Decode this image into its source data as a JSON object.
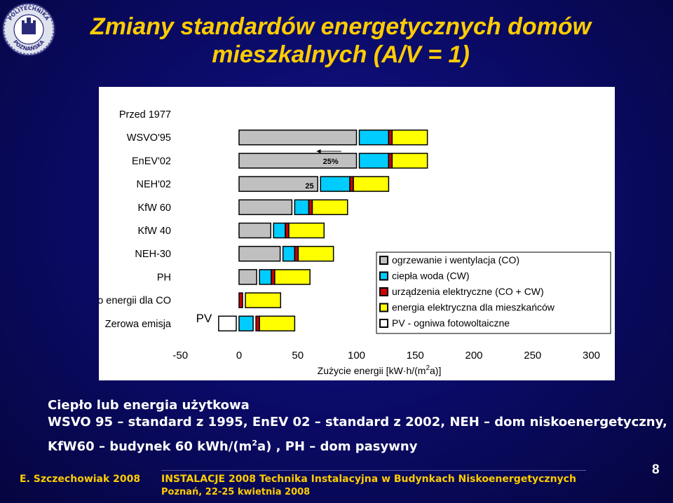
{
  "logo": {
    "text_top": "POLITECHNIKA",
    "text_bottom": "POZNAŃSKA"
  },
  "title": {
    "line1": "Zmiany standardów energetycznych domów",
    "line2": "mieszkalnych (A/V = 1)"
  },
  "colors": {
    "background": "#0b0b6a",
    "title": "#ffcc00",
    "body_text": "#ffffff",
    "co": "#c0c0c0",
    "cw": "#00ccff",
    "elec": "#cc0000",
    "resident": "#ffff00",
    "pv": "#ffffff"
  },
  "chart_data": {
    "type": "bar",
    "orientation": "horizontal",
    "stacked": true,
    "categories": [
      "Przed 1977",
      "WSVO'95",
      "EnEV'02",
      "NEH'02",
      "KfW 60",
      "KfW 40",
      "NEH-30",
      "PH",
      "Zero energii dla CO",
      "Zerowa emisja"
    ],
    "series": [
      {
        "name": "ogrzewanie i wentylacja (CO)",
        "color": "#c0c0c0",
        "values": [
          null,
          100,
          100,
          67,
          45,
          27,
          35,
          15,
          0,
          0
        ]
      },
      {
        "name": "ciepła woda (CW)",
        "color": "#00ccff",
        "values": [
          null,
          25,
          25,
          25,
          12,
          10,
          10,
          10,
          0,
          12
        ]
      },
      {
        "name": "urządzenia elektryczne (CO + CW)",
        "color": "#cc0000",
        "values": [
          null,
          3,
          3,
          3,
          3,
          3,
          3,
          3,
          3,
          3
        ]
      },
      {
        "name": "energia elektryczna dla mieszkańców",
        "color": "#ffff00",
        "values": [
          null,
          30,
          30,
          30,
          30,
          30,
          30,
          30,
          30,
          30
        ]
      },
      {
        "name": "PV - ogniwa fotowoltaiczne",
        "color": "#ffffff",
        "values": [
          null,
          0,
          0,
          0,
          0,
          0,
          0,
          0,
          0,
          -15
        ]
      }
    ],
    "x_ticks": [
      "-50",
      "0",
      "50",
      "100",
      "150",
      "200",
      "250",
      "300"
    ],
    "xlim": [
      -50,
      300
    ],
    "xlabel": "Zużycie  energii [kW·h/(m",
    "xlabel_sup": "2",
    "xlabel_end": "a)]",
    "annotations": {
      "pct": "25%",
      "abs": "25",
      "pv_label": "PV"
    },
    "legend_position": "right"
  },
  "body": {
    "line1": "Ciepło lub energia użytkowa",
    "line2": "WSVO 95 – standard z 1995, EnEV 02 – standard z 2002, NEH – dom niskoenergetyczny,",
    "line3_a": "KfW60 – budynek 60 kWh/(m",
    "line3_sup": "2",
    "line3_b": "a) , PH – dom pasywny"
  },
  "footer": {
    "author": "E. Szczechowiak 2008",
    "event": "INSTALACJE 2008 Technika Instalacyjna w Budynkach Niskoenergetycznych",
    "location": "Poznań, 22-25 kwietnia 2008",
    "page": "8"
  }
}
